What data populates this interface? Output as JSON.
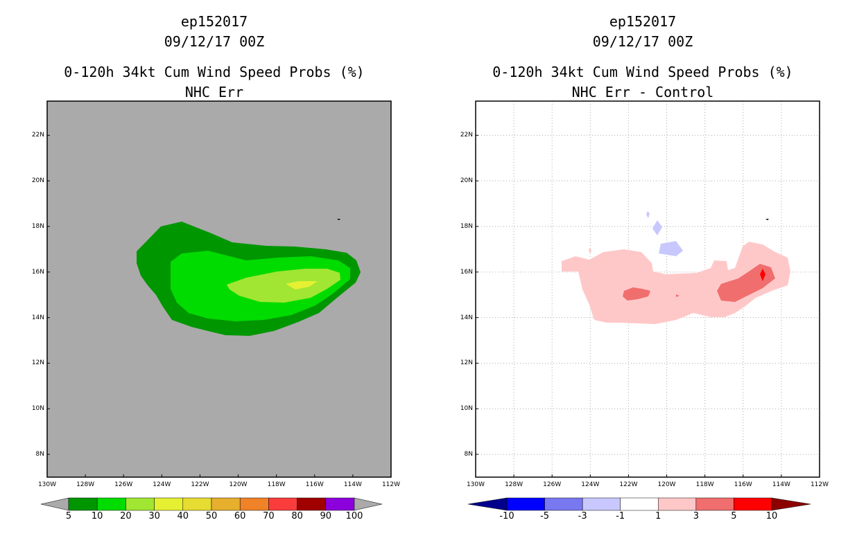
{
  "panels": [
    {
      "id": "left",
      "storm": "ep152017",
      "datetime": "09/12/17 00Z",
      "product": "0-120h 34kt Cum Wind Speed Probs (%)",
      "subtitle": "NHC Err",
      "background": "#aaaaaa",
      "gridlines": false,
      "colorbar": {
        "labels": [
          "5",
          "10",
          "20",
          "30",
          "40",
          "50",
          "60",
          "70",
          "80",
          "90",
          "100"
        ],
        "colors": [
          "#009600",
          "#00dc00",
          "#a0e632",
          "#e6f032",
          "#e6dc32",
          "#e6af2d",
          "#f08228",
          "#fa3c3c",
          "#a00000",
          "#8c00dc"
        ],
        "under_color": "#aaaaaa",
        "over_color": "#aaaaaa"
      }
    },
    {
      "id": "right",
      "storm": "ep152017",
      "datetime": "09/12/17 00Z",
      "product": "0-120h 34kt Cum Wind Speed Probs (%)",
      "subtitle": "NHC Err - Control",
      "background": "#ffffff",
      "gridlines": true,
      "colorbar": {
        "labels": [
          "-10",
          "-5",
          "-3",
          "-1",
          "1",
          "3",
          "5",
          "10"
        ],
        "colors": [
          "#0000ff",
          "#7878f0",
          "#c8c8ff",
          "#ffffff",
          "#ffc8c8",
          "#f06e6e",
          "#ff0000"
        ],
        "under_color": "#00008c",
        "over_color": "#8c0000"
      }
    }
  ],
  "axes": {
    "lon_labels": [
      "130W",
      "128W",
      "126W",
      "124W",
      "122W",
      "120W",
      "118W",
      "116W",
      "114W",
      "112W"
    ],
    "lat_labels": [
      "8N",
      "10N",
      "12N",
      "14N",
      "16N",
      "18N",
      "20N",
      "22N"
    ],
    "lon_range": [
      -130,
      -112
    ],
    "lat_range": [
      7,
      23.5
    ]
  }
}
